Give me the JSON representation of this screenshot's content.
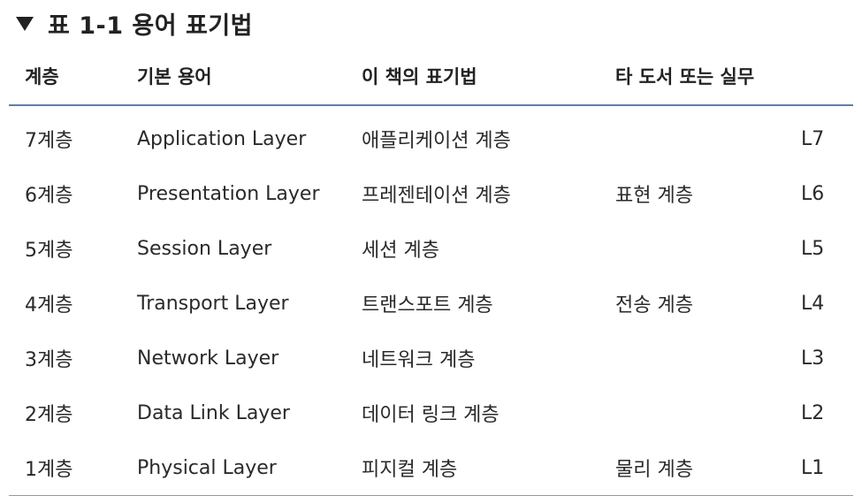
{
  "title": {
    "icon": "triangle-down-icon",
    "text": "표 1-1 용어 표기법"
  },
  "table": {
    "headers": [
      "계층",
      "기본 용어",
      "이 책의 표기법",
      "타 도서 또는 실무",
      ""
    ],
    "rows": [
      [
        "7계층",
        "Application Layer",
        "애플리케이션 계층",
        "",
        "L7"
      ],
      [
        "6계층",
        "Presentation Layer",
        "프레젠테이션 계층",
        "표현 계층",
        "L6"
      ],
      [
        "5계층",
        "Session Layer",
        "세션 계층",
        "",
        "L5"
      ],
      [
        "4계층",
        "Transport Layer",
        "트랜스포트 계층",
        "전송 계층",
        "L4"
      ],
      [
        "3계층",
        "Network Layer",
        "네트워크 계층",
        "",
        "L3"
      ],
      [
        "2계층",
        "Data Link Layer",
        "데이터 링크 계층",
        "",
        "L2"
      ],
      [
        "1계층",
        "Physical Layer",
        "피지컬 계층",
        "물리 계층",
        "L1"
      ]
    ]
  },
  "colors": {
    "header_rule": "#5f7ea6",
    "bottom_rule": "#9a9a9a",
    "text": "#222222"
  }
}
